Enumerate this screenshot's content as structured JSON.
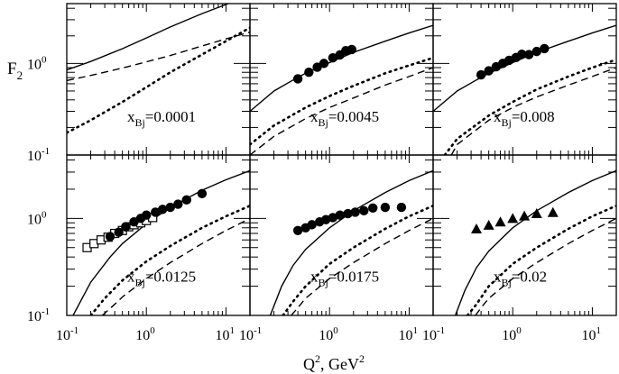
{
  "chart_data": {
    "type": "line",
    "layout": "2x3 grid of log-log panels sharing axes",
    "x_axis": {
      "scale": "log",
      "range": [
        0.1,
        20
      ],
      "major_ticks": [
        0.1,
        1,
        10
      ],
      "tick_labels": [
        {
          "base": "10",
          "exp": "-1"
        },
        {
          "base": "10",
          "exp": "0"
        },
        {
          "base": "10",
          "exp": "1"
        }
      ],
      "label_prefix": "Q",
      "label_sup": "2",
      "label_mid": ",  GeV",
      "label_sup2": "2"
    },
    "y_axis": {
      "scale": "log",
      "range": [
        0.1,
        4.5
      ],
      "major_ticks": [
        0.1,
        1
      ],
      "tick_labels": [
        {
          "base": "10",
          "exp": "-1"
        },
        {
          "base": "10",
          "exp": "0"
        }
      ],
      "label_main": "F",
      "label_sub": "2"
    },
    "line_styles": {
      "solid": "solid",
      "dashed": "dashed",
      "dotted": "dotted"
    },
    "panels": [
      {
        "x_prefix": "x",
        "x_sub": "Bj",
        "x_value": "=0.0001",
        "series": [
          {
            "name": "solid",
            "style": "solid",
            "x": [
              0.1,
              0.2,
              0.5,
              1,
              2,
              5,
              10,
              20
            ],
            "y": [
              0.85,
              1.05,
              1.45,
              1.9,
              2.5,
              3.5,
              4.4,
              5.5
            ]
          },
          {
            "name": "dashed",
            "style": "dashed",
            "x": [
              0.1,
              0.2,
              0.5,
              1,
              2,
              5,
              10,
              20
            ],
            "y": [
              0.65,
              0.74,
              0.89,
              1.04,
              1.22,
              1.55,
              1.85,
              2.2
            ]
          },
          {
            "name": "dotted",
            "style": "dotted",
            "x": [
              0.1,
              0.2,
              0.5,
              1,
              2,
              5,
              10,
              20
            ],
            "y": [
              0.175,
              0.24,
              0.38,
              0.55,
              0.8,
              1.25,
              1.75,
              2.45
            ]
          }
        ],
        "markers": []
      },
      {
        "x_prefix": "x",
        "x_sub": "Bj",
        "x_value": "=0.0045",
        "series": [
          {
            "name": "solid",
            "style": "solid",
            "x": [
              0.1,
              0.2,
              0.35,
              0.5,
              1,
              2,
              5,
              10,
              20
            ],
            "y": [
              0.3,
              0.5,
              0.66,
              0.78,
              1.02,
              1.32,
              1.75,
              2.15,
              2.6
            ]
          },
          {
            "name": "dotted",
            "style": "dotted",
            "x": [
              0.1,
              0.2,
              0.5,
              1,
              2,
              5,
              10,
              20
            ],
            "y": [
              0.13,
              0.21,
              0.33,
              0.44,
              0.57,
              0.78,
              0.95,
              1.15
            ]
          },
          {
            "name": "dashed",
            "style": "dashed",
            "x": [
              0.1,
              0.2,
              0.5,
              1,
              2,
              5,
              10,
              20
            ],
            "y": [
              0.1,
              0.16,
              0.25,
              0.33,
              0.42,
              0.58,
              0.72,
              0.9
            ]
          }
        ],
        "markers": [
          {
            "shape": "circle",
            "x": [
              0.4,
              0.55,
              0.7,
              0.85,
              1.1,
              1.35,
              1.6,
              1.9
            ],
            "y": [
              0.68,
              0.8,
              0.91,
              1.0,
              1.15,
              1.24,
              1.38,
              1.42
            ]
          }
        ]
      },
      {
        "x_prefix": "x",
        "x_sub": "Bj",
        "x_value": "=0.008",
        "series": [
          {
            "name": "solid",
            "style": "solid",
            "x": [
              0.1,
              0.2,
              0.35,
              0.5,
              1,
              2,
              5,
              10,
              20
            ],
            "y": [
              0.3,
              0.5,
              0.66,
              0.78,
              1.02,
              1.32,
              1.75,
              2.15,
              2.6
            ]
          },
          {
            "name": "dotted",
            "style": "dotted",
            "x": [
              0.14,
              0.2,
              0.5,
              1,
              2,
              5,
              10,
              20
            ],
            "y": [
              0.1,
              0.15,
              0.27,
              0.38,
              0.52,
              0.72,
              0.9,
              1.1
            ]
          },
          {
            "name": "dashed",
            "style": "dashed",
            "x": [
              0.17,
              0.2,
              0.5,
              1,
              2,
              5,
              10,
              20
            ],
            "y": [
              0.1,
              0.13,
              0.24,
              0.33,
              0.43,
              0.58,
              0.72,
              0.9
            ]
          }
        ],
        "markers": [
          {
            "shape": "circle",
            "x": [
              0.4,
              0.5,
              0.62,
              0.75,
              0.9,
              1.1,
              1.3,
              1.6,
              2.0,
              2.5
            ],
            "y": [
              0.75,
              0.83,
              0.92,
              1.0,
              1.08,
              1.16,
              1.26,
              1.25,
              1.35,
              1.45
            ]
          }
        ]
      },
      {
        "x_prefix": "x",
        "x_sub": "Bj",
        "x_value": "=0.0125",
        "series": [
          {
            "name": "solid",
            "style": "solid",
            "x": [
              0.12,
              0.2,
              0.35,
              0.5,
              1,
              2,
              5,
              10,
              20
            ],
            "y": [
              0.1,
              0.22,
              0.4,
              0.55,
              0.88,
              1.3,
              1.95,
              2.5,
              3.1
            ]
          },
          {
            "name": "dotted",
            "style": "dotted",
            "x": [
              0.2,
              0.3,
              0.5,
              1,
              2,
              5,
              10,
              20
            ],
            "y": [
              0.1,
              0.15,
              0.23,
              0.36,
              0.52,
              0.8,
              1.05,
              1.35
            ]
          },
          {
            "name": "dashed",
            "style": "dashed",
            "x": [
              0.28,
              0.4,
              0.5,
              1,
              2,
              5,
              10,
              20
            ],
            "y": [
              0.1,
              0.13,
              0.155,
              0.24,
              0.35,
              0.55,
              0.75,
              1.0
            ]
          }
        ],
        "markers": [
          {
            "shape": "square",
            "x": [
              0.18,
              0.22,
              0.27,
              0.33,
              0.4,
              0.5,
              0.6,
              0.7,
              0.85,
              1.0,
              1.2
            ],
            "y": [
              0.5,
              0.55,
              0.6,
              0.64,
              0.7,
              0.75,
              0.82,
              0.86,
              0.9,
              0.95,
              1.02
            ]
          },
          {
            "shape": "circle",
            "x": [
              0.35,
              0.45,
              0.55,
              0.7,
              0.85,
              1.0,
              1.3,
              1.6,
              2.0,
              2.5,
              3.2,
              5.0
            ],
            "y": [
              0.65,
              0.72,
              0.82,
              0.92,
              1.0,
              1.08,
              1.16,
              1.24,
              1.3,
              1.4,
              1.55,
              1.8
            ]
          }
        ]
      },
      {
        "x_prefix": "x",
        "x_sub": "Bj",
        "x_value": "=0.0175",
        "series": [
          {
            "name": "solid",
            "style": "solid",
            "x": [
              0.18,
              0.25,
              0.35,
              0.5,
              1,
              2,
              5,
              10,
              20
            ],
            "y": [
              0.1,
              0.2,
              0.33,
              0.48,
              0.8,
              1.2,
              1.85,
              2.45,
              3.1
            ]
          },
          {
            "name": "dotted",
            "style": "dotted",
            "x": [
              0.26,
              0.35,
              0.5,
              1,
              2,
              5,
              10,
              20
            ],
            "y": [
              0.1,
              0.14,
              0.2,
              0.34,
              0.5,
              0.78,
              1.05,
              1.35
            ]
          },
          {
            "name": "dashed",
            "style": "dashed",
            "x": [
              0.33,
              0.4,
              0.5,
              1,
              2,
              5,
              10,
              20
            ],
            "y": [
              0.1,
              0.12,
              0.15,
              0.24,
              0.35,
              0.55,
              0.75,
              1.0
            ]
          }
        ],
        "markers": [
          {
            "shape": "circle",
            "x": [
              0.4,
              0.5,
              0.6,
              0.75,
              0.9,
              1.1,
              1.35,
              1.7,
              2.1,
              2.7,
              3.5,
              5.0,
              8.0
            ],
            "y": [
              0.75,
              0.8,
              0.86,
              0.92,
              0.97,
              1.02,
              1.08,
              1.12,
              1.16,
              1.2,
              1.28,
              1.3,
              1.3
            ]
          }
        ]
      },
      {
        "x_prefix": "x",
        "x_sub": "Bj",
        "x_value": "=0.02",
        "series": [
          {
            "name": "solid",
            "style": "solid",
            "x": [
              0.19,
              0.25,
              0.35,
              0.5,
              1,
              2,
              5,
              10,
              20
            ],
            "y": [
              0.1,
              0.18,
              0.31,
              0.46,
              0.8,
              1.2,
              1.85,
              2.45,
              3.1
            ]
          },
          {
            "name": "dotted",
            "style": "dotted",
            "x": [
              0.27,
              0.35,
              0.5,
              1,
              2,
              5,
              10,
              20
            ],
            "y": [
              0.1,
              0.13,
              0.2,
              0.34,
              0.5,
              0.78,
              1.05,
              1.35
            ]
          },
          {
            "name": "dashed",
            "style": "dashed",
            "x": [
              0.34,
              0.4,
              0.5,
              1,
              2,
              5,
              10,
              20
            ],
            "y": [
              0.1,
              0.12,
              0.15,
              0.24,
              0.35,
              0.55,
              0.75,
              1.0
            ]
          }
        ],
        "markers": [
          {
            "shape": "triangle",
            "x": [
              0.35,
              0.5,
              0.7,
              1.0,
              1.4,
              2.0,
              3.2
            ],
            "y": [
              0.78,
              0.85,
              0.92,
              1.0,
              1.06,
              1.12,
              1.15
            ]
          }
        ]
      }
    ]
  }
}
